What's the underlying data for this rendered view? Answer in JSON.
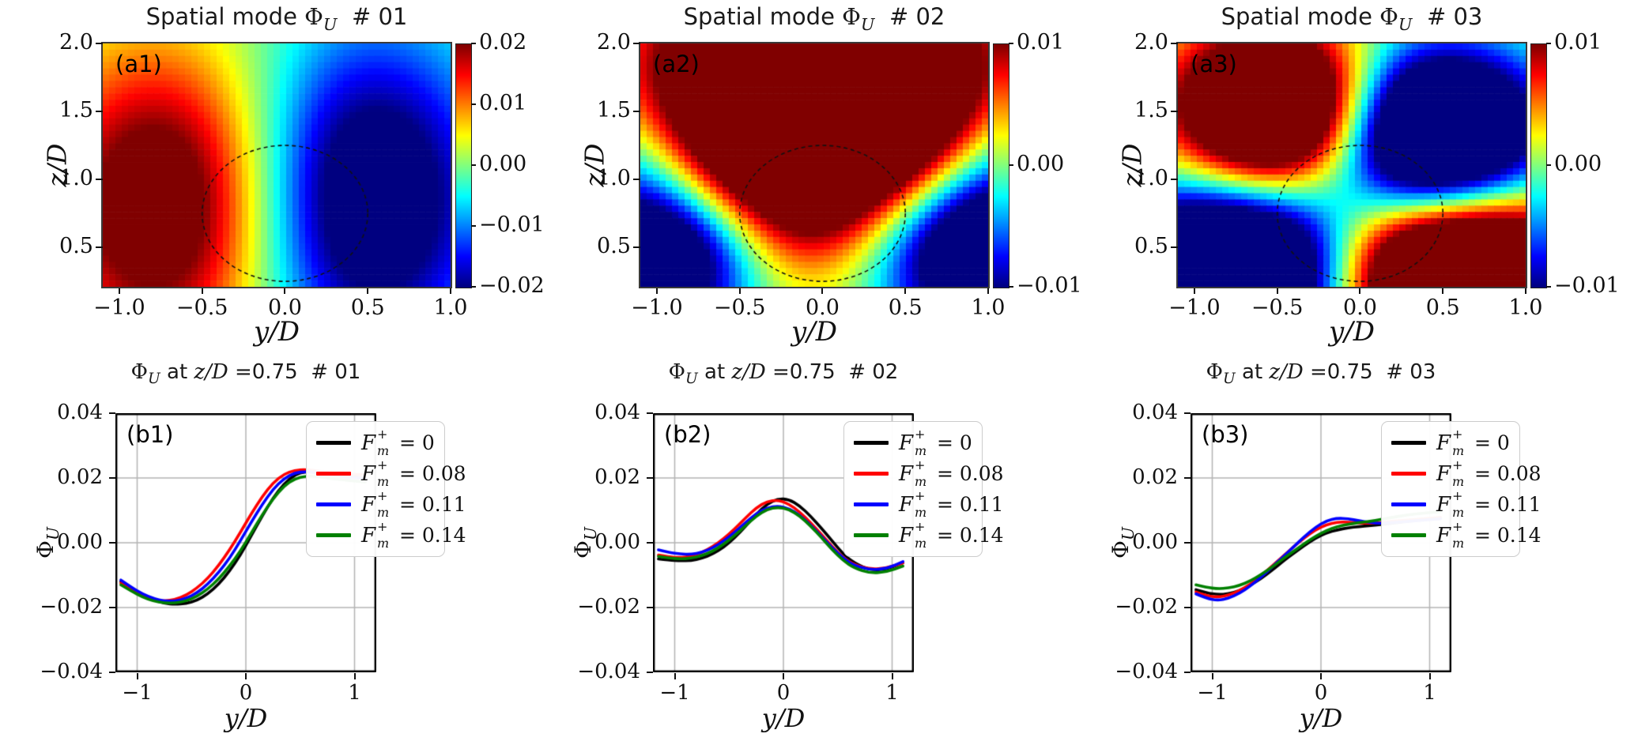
{
  "colors": {
    "series": [
      "#000000",
      "#ff0000",
      "#0000ff",
      "#008000"
    ],
    "grid": "#b3b3b3",
    "spine": "#000000",
    "legend_border": "#cccccc",
    "colormap": "jet"
  },
  "legend": {
    "entries": [
      {
        "label": "F_m^+ = 0",
        "sym": "F",
        "sup": "+",
        "sub": "m",
        "rhs": "= 0",
        "color": "#000000"
      },
      {
        "label": "F_m^+ = 0.08",
        "sym": "F",
        "sup": "+",
        "sub": "m",
        "rhs": "= 0.08",
        "color": "#ff0000"
      },
      {
        "label": "F_m^+ = 0.11",
        "sym": "F",
        "sup": "+",
        "sub": "m",
        "rhs": "= 0.11",
        "color": "#0000ff"
      },
      {
        "label": "F_m^+ = 0.14",
        "sym": "F",
        "sup": "+",
        "sub": "m",
        "rhs": "= 0.14",
        "color": "#008000"
      }
    ]
  },
  "chart_data": [
    {
      "type": "heatmap",
      "panel_label": "(a1)",
      "title_prefix": "Spatial mode ",
      "title_symbol": "Φ",
      "title_symbol_sub": "U",
      "title_suffix": "  # 01",
      "xlabel": "y/D",
      "ylabel": "z/D",
      "x_range": [
        -1.1,
        1.0
      ],
      "z_range": [
        0.21,
        2.0
      ],
      "x_tick_values": [
        -1.0,
        -0.5,
        0.0,
        0.5,
        1.0
      ],
      "x_tick_labels": [
        "−1.0",
        "−0.5",
        "0.0",
        "0.5",
        "1.0"
      ],
      "y_tick_values": [
        0.5,
        1.0,
        1.5,
        2.0
      ],
      "y_tick_labels": [
        "0.5",
        "1.0",
        "1.5",
        "2.0"
      ],
      "clim": [
        -0.02,
        0.02
      ],
      "colorbar_tick_values": [
        0.02,
        0.01,
        0.0,
        -0.01,
        -0.02
      ],
      "colorbar_tick_labels": [
        "0.02",
        "0.01",
        "0.00",
        "−0.01",
        "−0.02"
      ],
      "cylinder_outline": {
        "y": 0.0,
        "z": 0.75,
        "radius": 0.5,
        "style": "dashed"
      },
      "background": 0.0,
      "field_gaussians": [
        {
          "y": -0.75,
          "z": 0.8,
          "sy": 0.5,
          "sz": 0.8,
          "amp": 0.027
        },
        {
          "y": 0.52,
          "z": 0.85,
          "sy": 0.5,
          "sz": 0.85,
          "amp": -0.028
        }
      ]
    },
    {
      "type": "heatmap",
      "panel_label": "(a2)",
      "title_prefix": "Spatial mode ",
      "title_symbol": "Φ",
      "title_symbol_sub": "U",
      "title_suffix": "  # 02",
      "xlabel": "y/D",
      "ylabel": "z/D",
      "x_range": [
        -1.1,
        1.0
      ],
      "z_range": [
        0.21,
        2.0
      ],
      "x_tick_values": [
        -1.0,
        -0.5,
        0.0,
        0.5,
        1.0
      ],
      "x_tick_labels": [
        "−1.0",
        "−0.5",
        "0.0",
        "0.5",
        "1.0"
      ],
      "y_tick_values": [
        0.5,
        1.0,
        1.5,
        2.0
      ],
      "y_tick_labels": [
        "0.5",
        "1.0",
        "1.5",
        "2.0"
      ],
      "clim": [
        -0.01,
        0.01
      ],
      "colorbar_tick_values": [
        0.01,
        0.0,
        -0.01
      ],
      "colorbar_tick_labels": [
        "0.01",
        "0.00",
        "−0.01"
      ],
      "cylinder_outline": {
        "y": 0.0,
        "z": 0.75,
        "radius": 0.5,
        "style": "dashed"
      },
      "background": -0.002,
      "field_gaussians": [
        {
          "y": 0.0,
          "z": 1.55,
          "sy": 0.66,
          "sz": 0.8,
          "amp": 0.03
        },
        {
          "y": 0.05,
          "z": 1.7,
          "sy": 1.15,
          "sz": 0.5,
          "amp": 0.008
        },
        {
          "y": -0.9,
          "z": 0.42,
          "sy": 0.38,
          "sz": 0.38,
          "amp": -0.015
        },
        {
          "y": 0.85,
          "z": 0.5,
          "sy": 0.45,
          "sz": 0.42,
          "amp": -0.017
        },
        {
          "y": -1.15,
          "z": 0.95,
          "sy": 0.35,
          "sz": 0.55,
          "amp": -0.007
        },
        {
          "y": 1.15,
          "z": 1.1,
          "sy": 0.4,
          "sz": 0.6,
          "amp": -0.007
        }
      ]
    },
    {
      "type": "heatmap",
      "panel_label": "(a3)",
      "title_prefix": "Spatial mode ",
      "title_symbol": "Φ",
      "title_symbol_sub": "U",
      "title_suffix": "  # 03",
      "xlabel": "y/D",
      "ylabel": "z/D",
      "x_range": [
        -1.1,
        1.0
      ],
      "z_range": [
        0.21,
        2.0
      ],
      "x_tick_values": [
        -1.0,
        -0.5,
        0.0,
        0.5,
        1.0
      ],
      "x_tick_labels": [
        "−1.0",
        "−0.5",
        "0.0",
        "0.5",
        "1.0"
      ],
      "y_tick_values": [
        0.5,
        1.0,
        1.5,
        2.0
      ],
      "y_tick_labels": [
        "0.5",
        "1.0",
        "1.5",
        "2.0"
      ],
      "clim": [
        -0.01,
        0.01
      ],
      "colorbar_tick_values": [
        0.01,
        0.0,
        -0.01
      ],
      "colorbar_tick_labels": [
        "0.01",
        "0.00",
        "−0.01"
      ],
      "cylinder_outline": {
        "y": 0.0,
        "z": 0.75,
        "radius": 0.5,
        "style": "dashed"
      },
      "background": 0.0005,
      "field_gaussians": [
        {
          "y": -0.5,
          "z": 1.52,
          "sy": 0.42,
          "sz": 0.4,
          "amp": 0.026
        },
        {
          "y": 0.45,
          "z": 1.35,
          "sy": 0.45,
          "sz": 0.42,
          "amp": -0.026
        },
        {
          "y": -0.8,
          "z": 0.3,
          "sy": 0.55,
          "sz": 0.42,
          "amp": -0.03
        },
        {
          "y": 0.6,
          "z": 0.28,
          "sy": 0.55,
          "sz": 0.4,
          "amp": 0.03
        }
      ]
    },
    {
      "type": "line",
      "panel_label": "(b1)",
      "title_phi": "Φ",
      "title_phi_sub": "U",
      "title_mid": " at ",
      "title_zd": "z/D",
      "title_suffix": " =0.75  # 01",
      "xlabel": "y/D",
      "ylabel_symbol": "Φ",
      "ylabel_sub": "U",
      "xlim": [
        -1.2,
        1.2
      ],
      "ylim": [
        -0.04,
        0.04
      ],
      "x_tick_values": [
        -1,
        0,
        1
      ],
      "x_tick_labels": [
        "−1",
        "0",
        "1"
      ],
      "y_tick_values": [
        0.04,
        0.02,
        0.0,
        -0.02,
        -0.04
      ],
      "y_tick_labels": [
        "0.04",
        "0.02",
        "0.00",
        "−0.02",
        "−0.04"
      ],
      "grid_x": [
        -1,
        0,
        1
      ],
      "grid_y": [
        0.02,
        0.0,
        -0.02
      ],
      "x": [
        -1.15,
        -1.05,
        -0.95,
        -0.85,
        -0.75,
        -0.65,
        -0.55,
        -0.45,
        -0.35,
        -0.25,
        -0.15,
        -0.05,
        0.05,
        0.15,
        0.25,
        0.35,
        0.45,
        0.55,
        0.65,
        0.8,
        0.95,
        1.1
      ],
      "series": [
        {
          "name": "F_m^+ = 0",
          "color": "#000000",
          "y": [
            -0.012,
            -0.014,
            -0.016,
            -0.0175,
            -0.0188,
            -0.019,
            -0.0188,
            -0.0178,
            -0.0158,
            -0.0128,
            -0.0088,
            -0.0038,
            0.0022,
            0.0082,
            0.0138,
            0.0182,
            0.021,
            0.022,
            0.0218,
            0.021,
            0.0205,
            0.02
          ]
        },
        {
          "name": "F_m^+ = 0.08",
          "color": "#ff0000",
          "y": [
            -0.0125,
            -0.0148,
            -0.0165,
            -0.0178,
            -0.018,
            -0.0175,
            -0.0162,
            -0.014,
            -0.011,
            -0.007,
            -0.0022,
            0.0032,
            0.009,
            0.0142,
            0.0185,
            0.0212,
            0.0224,
            0.0226,
            0.0222,
            0.0215,
            0.0212,
            0.021
          ]
        },
        {
          "name": "F_m^+ = 0.11",
          "color": "#0000ff",
          "y": [
            -0.0115,
            -0.0138,
            -0.0158,
            -0.0172,
            -0.018,
            -0.018,
            -0.0172,
            -0.0155,
            -0.0128,
            -0.0092,
            -0.0048,
            0.0006,
            0.0064,
            0.0118,
            0.0165,
            0.0198,
            0.0216,
            0.022,
            0.0216,
            0.0208,
            0.0202,
            0.0198
          ]
        },
        {
          "name": "F_m^+ = 0.14",
          "color": "#008000",
          "y": [
            -0.013,
            -0.015,
            -0.0168,
            -0.018,
            -0.0186,
            -0.0186,
            -0.018,
            -0.0166,
            -0.0143,
            -0.0112,
            -0.0072,
            -0.0026,
            0.003,
            0.0086,
            0.0136,
            0.0175,
            0.0198,
            0.0206,
            0.0205,
            0.0198,
            0.0192,
            0.0188
          ]
        }
      ]
    },
    {
      "type": "line",
      "panel_label": "(b2)",
      "title_phi": "Φ",
      "title_phi_sub": "U",
      "title_mid": " at ",
      "title_zd": "z/D",
      "title_suffix": " =0.75  # 02",
      "xlabel": "y/D",
      "ylabel_symbol": "Φ",
      "ylabel_sub": "U",
      "xlim": [
        -1.2,
        1.2
      ],
      "ylim": [
        -0.04,
        0.04
      ],
      "x_tick_values": [
        -1,
        0,
        1
      ],
      "x_tick_labels": [
        "−1",
        "0",
        "1"
      ],
      "y_tick_values": [
        0.04,
        0.02,
        0.0,
        -0.02,
        -0.04
      ],
      "y_tick_labels": [
        "0.04",
        "0.02",
        "0.00",
        "−0.02",
        "−0.04"
      ],
      "grid_x": [
        -1,
        0,
        1
      ],
      "grid_y": [
        0.02,
        0.0,
        -0.02
      ],
      "x": [
        -1.15,
        -1.05,
        -0.95,
        -0.85,
        -0.75,
        -0.65,
        -0.55,
        -0.45,
        -0.35,
        -0.25,
        -0.15,
        -0.05,
        0.05,
        0.15,
        0.25,
        0.35,
        0.45,
        0.55,
        0.65,
        0.8,
        0.95,
        1.1
      ],
      "series": [
        {
          "name": "F_m^+ = 0",
          "color": "#000000",
          "y": [
            -0.005,
            -0.0054,
            -0.0056,
            -0.0055,
            -0.0048,
            -0.0035,
            -0.0014,
            0.0015,
            0.005,
            0.0088,
            0.012,
            0.0136,
            0.0134,
            0.0114,
            0.0082,
            0.0045,
            0.0005,
            -0.0035,
            -0.0062,
            -0.0085,
            -0.0082,
            -0.0062
          ]
        },
        {
          "name": "F_m^+ = 0.08",
          "color": "#ff0000",
          "y": [
            -0.0038,
            -0.0044,
            -0.0046,
            -0.0042,
            -0.003,
            -0.0012,
            0.0012,
            0.0042,
            0.0076,
            0.0108,
            0.0128,
            0.0132,
            0.012,
            0.0095,
            0.0062,
            0.0026,
            -0.0012,
            -0.0046,
            -0.0068,
            -0.0082,
            -0.0078,
            -0.0062
          ]
        },
        {
          "name": "F_m^+ = 0.11",
          "color": "#0000ff",
          "y": [
            -0.0022,
            -0.003,
            -0.0035,
            -0.0036,
            -0.003,
            -0.0016,
            0.0005,
            0.0032,
            0.0062,
            0.009,
            0.0108,
            0.0114,
            0.0106,
            0.0085,
            0.0055,
            0.002,
            -0.0016,
            -0.0048,
            -0.007,
            -0.0084,
            -0.008,
            -0.0058
          ]
        },
        {
          "name": "F_m^+ = 0.14",
          "color": "#008000",
          "y": [
            -0.0042,
            -0.0047,
            -0.005,
            -0.0048,
            -0.004,
            -0.0026,
            -0.0005,
            0.0022,
            0.0052,
            0.0082,
            0.0103,
            0.011,
            0.0103,
            0.0083,
            0.0052,
            0.0016,
            -0.0022,
            -0.0055,
            -0.0078,
            -0.0094,
            -0.009,
            -0.0072
          ]
        }
      ]
    },
    {
      "type": "line",
      "panel_label": "(b3)",
      "title_phi": "Φ",
      "title_phi_sub": "U",
      "title_mid": " at ",
      "title_zd": "z/D",
      "title_suffix": " =0.75  # 03",
      "xlabel": "y/D",
      "ylabel_symbol": "Φ",
      "ylabel_sub": "U",
      "xlim": [
        -1.2,
        1.2
      ],
      "ylim": [
        -0.04,
        0.04
      ],
      "x_tick_values": [
        -1,
        0,
        1
      ],
      "x_tick_labels": [
        "−1",
        "0",
        "1"
      ],
      "y_tick_values": [
        0.04,
        0.02,
        0.0,
        -0.02,
        -0.04
      ],
      "y_tick_labels": [
        "0.04",
        "0.02",
        "0.00",
        "−0.02",
        "−0.04"
      ],
      "grid_x": [
        -1,
        0,
        1
      ],
      "grid_y": [
        0.02,
        0.0,
        -0.02
      ],
      "x": [
        -1.15,
        -1.05,
        -0.95,
        -0.85,
        -0.75,
        -0.65,
        -0.55,
        -0.45,
        -0.35,
        -0.25,
        -0.15,
        -0.05,
        0.05,
        0.15,
        0.25,
        0.35,
        0.45,
        0.55,
        0.65,
        0.8,
        0.95,
        1.1
      ],
      "series": [
        {
          "name": "F_m^+ = 0",
          "color": "#000000",
          "y": [
            -0.0145,
            -0.0155,
            -0.016,
            -0.0158,
            -0.0148,
            -0.0132,
            -0.011,
            -0.0085,
            -0.0058,
            -0.0032,
            -0.0008,
            0.0014,
            0.003,
            0.004,
            0.0046,
            0.005,
            0.0053,
            0.0056,
            0.006,
            0.0066,
            0.0072,
            0.0078
          ]
        },
        {
          "name": "F_m^+ = 0.08",
          "color": "#ff0000",
          "y": [
            -0.0152,
            -0.0164,
            -0.0168,
            -0.0162,
            -0.0148,
            -0.0128,
            -0.0102,
            -0.0072,
            -0.0042,
            -0.0012,
            0.0016,
            0.004,
            0.0056,
            0.0064,
            0.0064,
            0.0061,
            0.006,
            0.0062,
            0.0066,
            0.007,
            0.0074,
            0.0078
          ]
        },
        {
          "name": "F_m^+ = 0.11",
          "color": "#0000ff",
          "y": [
            -0.0158,
            -0.0172,
            -0.0178,
            -0.0172,
            -0.0156,
            -0.0134,
            -0.0106,
            -0.0075,
            -0.0044,
            -0.0012,
            0.002,
            0.0048,
            0.0068,
            0.0076,
            0.0074,
            0.0068,
            0.0062,
            0.006,
            0.0062,
            0.0066,
            0.007,
            0.0074
          ]
        },
        {
          "name": "F_m^+ = 0.14",
          "color": "#008000",
          "y": [
            -0.013,
            -0.0138,
            -0.0142,
            -0.014,
            -0.0132,
            -0.0118,
            -0.0098,
            -0.0075,
            -0.005,
            -0.0026,
            -0.0002,
            0.002,
            0.0038,
            0.005,
            0.0057,
            0.0062,
            0.0066,
            0.0072,
            0.0078,
            0.0086,
            0.0092,
            0.0096
          ]
        }
      ]
    }
  ]
}
